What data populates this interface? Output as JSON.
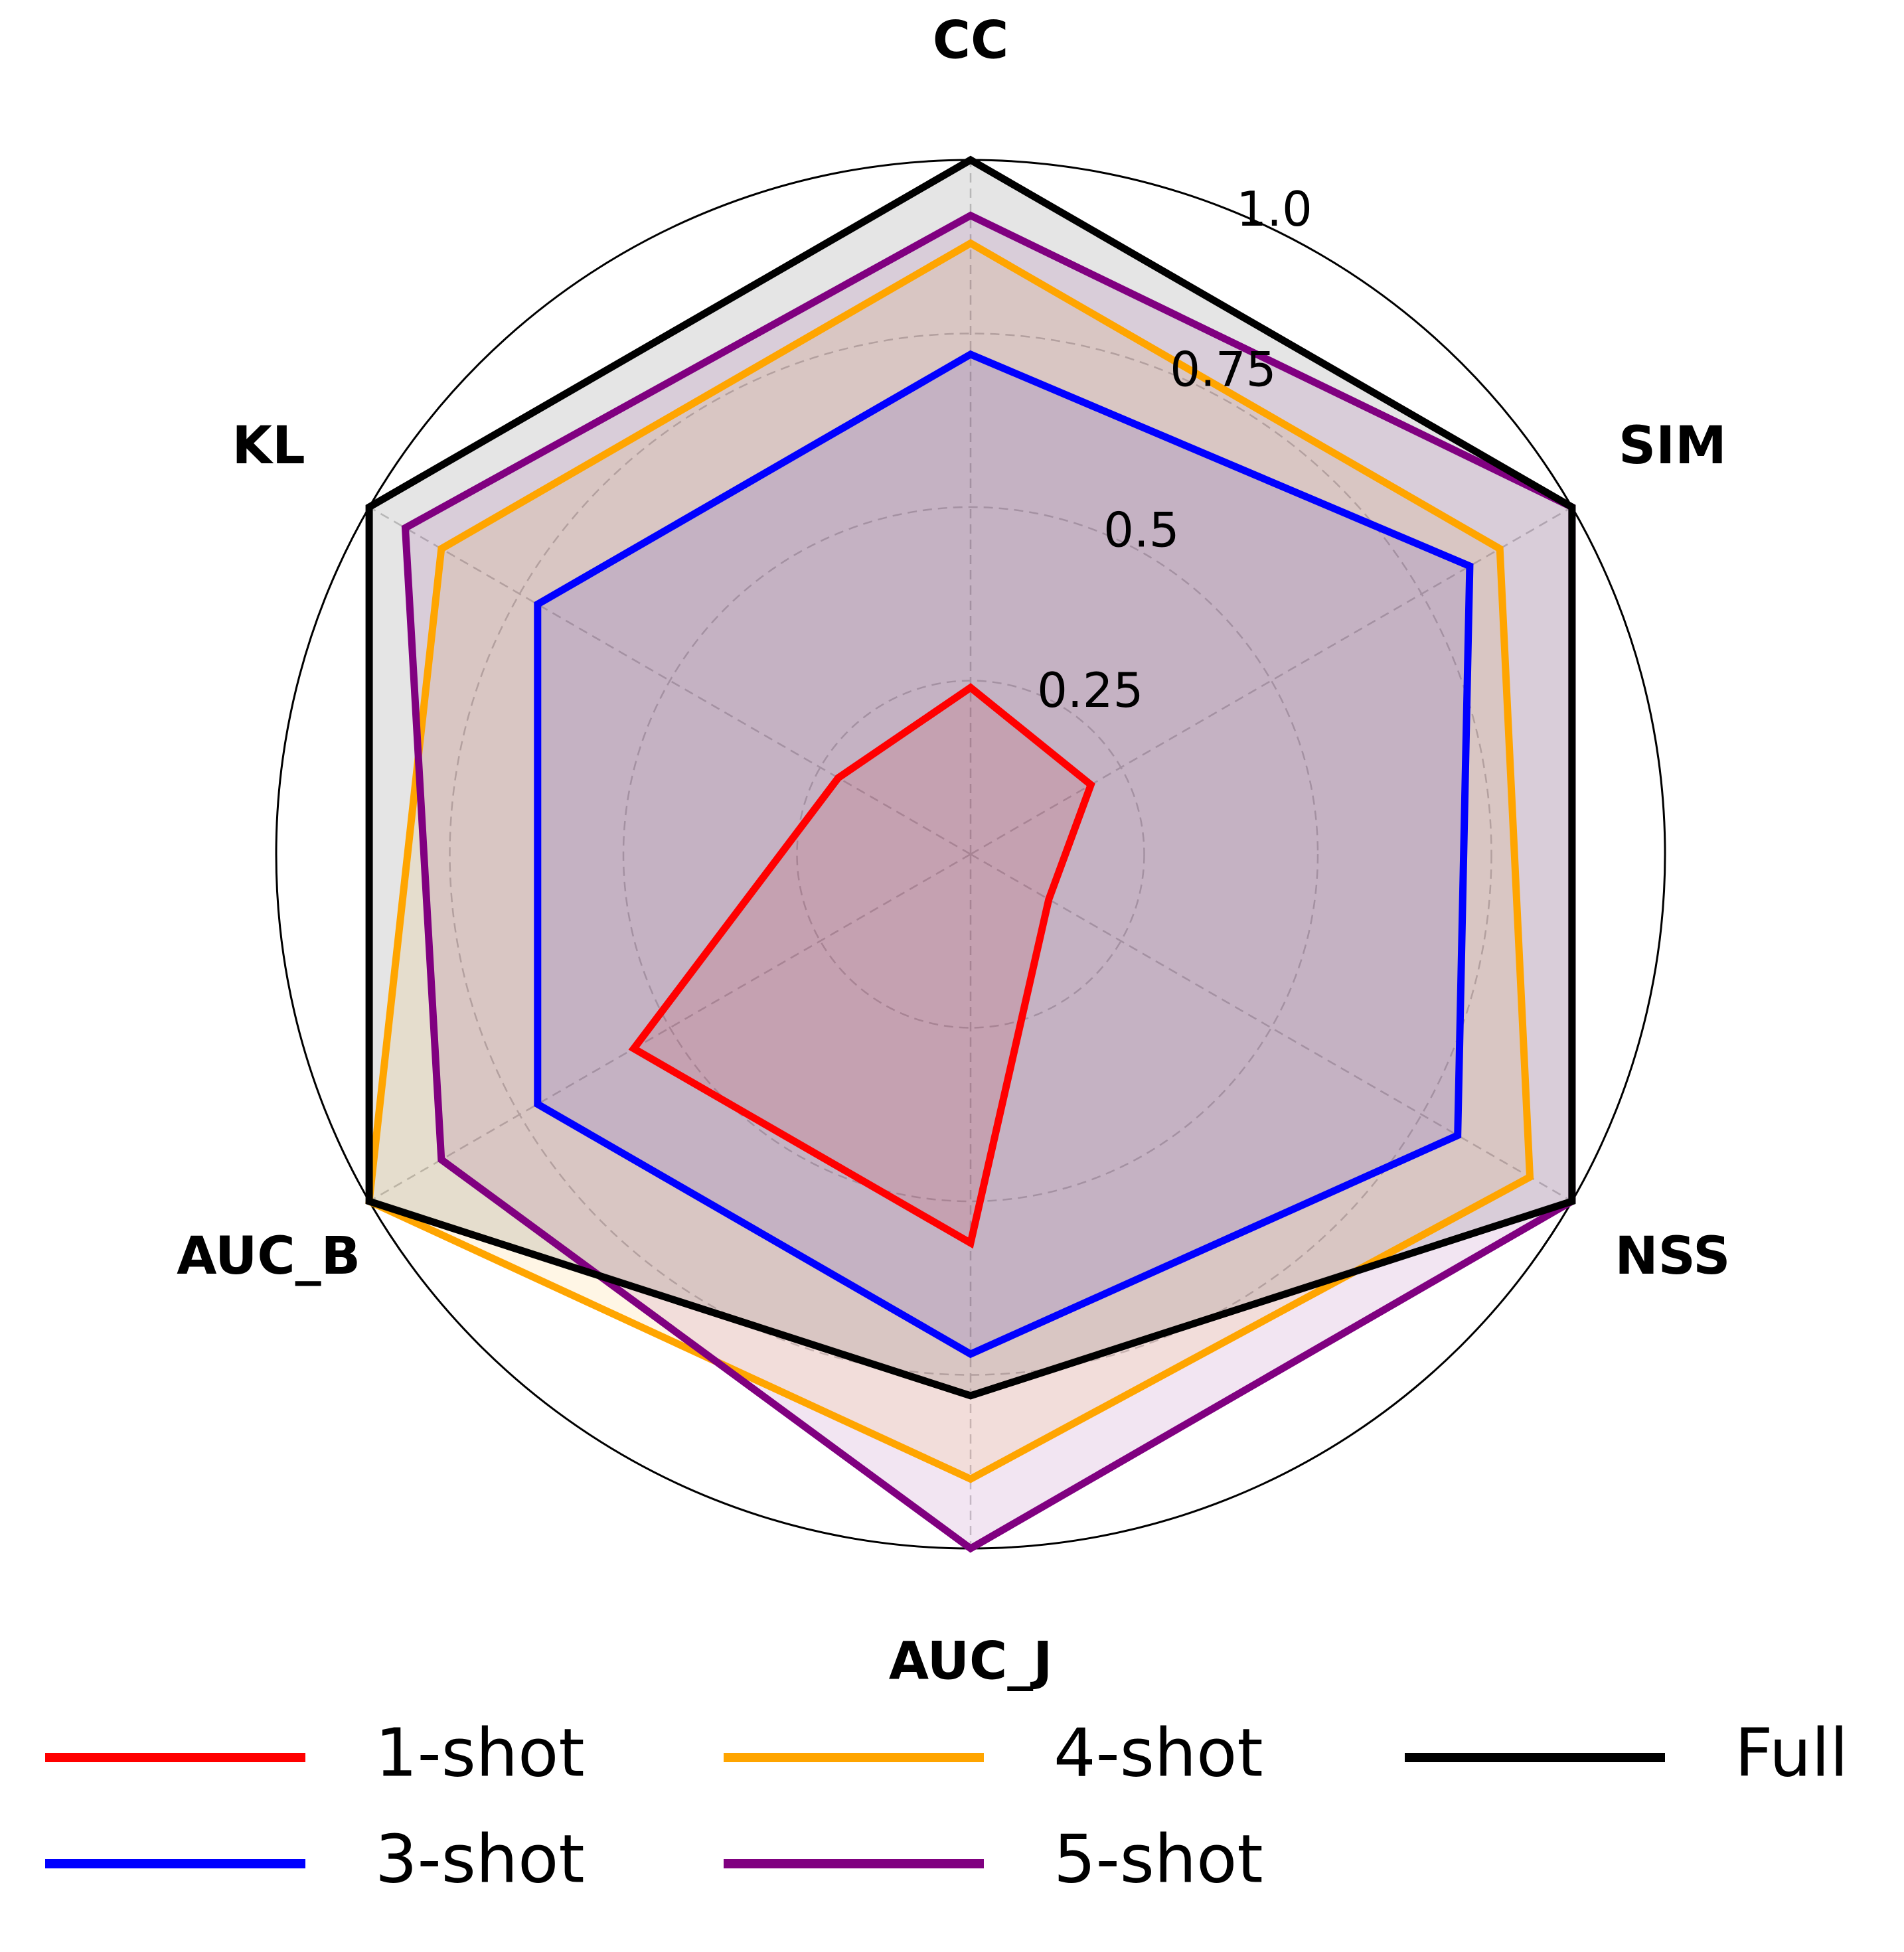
{
  "chart_data": {
    "type": "radar",
    "axes": [
      "CC",
      "SIM",
      "NSS",
      "AUC_J",
      "AUC_B",
      "KL"
    ],
    "rticks": [
      0.25,
      0.5,
      0.75,
      1.0
    ],
    "rtick_labels": [
      "0.25",
      "0.5",
      "0.75",
      "1.0"
    ],
    "rlim": [
      0,
      1.0
    ],
    "grid": true,
    "legend_position": "bottom",
    "series": [
      {
        "name": "1-shot",
        "color": "#ff0000",
        "fill_opacity": 0.1,
        "values": [
          0.24,
          0.2,
          0.13,
          0.56,
          0.56,
          0.22
        ]
      },
      {
        "name": "3-shot",
        "color": "#0000ff",
        "fill_opacity": 0.1,
        "values": [
          0.72,
          0.83,
          0.81,
          0.72,
          0.72,
          0.72
        ]
      },
      {
        "name": "4-shot",
        "color": "#ffa500",
        "fill_opacity": 0.1,
        "values": [
          0.88,
          0.88,
          0.93,
          0.9,
          1.0,
          0.88
        ]
      },
      {
        "name": "5-shot",
        "color": "#800080",
        "fill_opacity": 0.1,
        "values": [
          0.92,
          1.0,
          1.0,
          1.0,
          0.88,
          0.94
        ]
      },
      {
        "name": "Full",
        "color": "#000000",
        "fill_opacity": 0.1,
        "values": [
          1.0,
          1.0,
          1.0,
          0.78,
          1.0,
          1.0
        ]
      }
    ]
  }
}
